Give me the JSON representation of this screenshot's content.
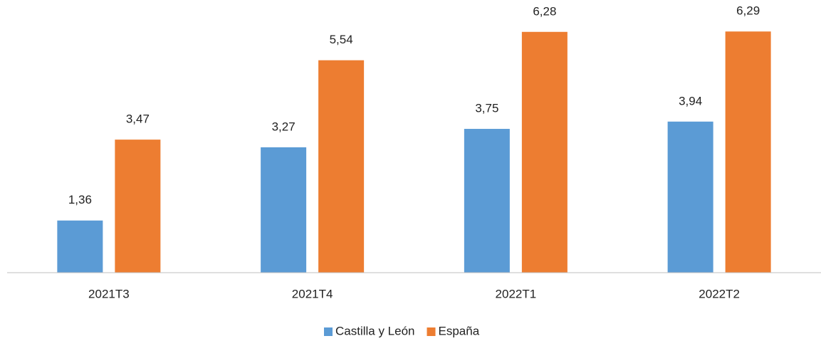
{
  "chart_data": {
    "type": "bar",
    "categories": [
      "2021T3",
      "2021T4",
      "2022T1",
      "2022T2"
    ],
    "series": [
      {
        "name": "Castilla y León",
        "color": "#5b9bd5",
        "values": [
          1.36,
          3.27,
          3.75,
          3.94
        ],
        "value_labels": [
          "1,36",
          "3,27",
          "3,75",
          "3,94"
        ]
      },
      {
        "name": "España",
        "color": "#ed7d31",
        "values": [
          3.47,
          5.54,
          6.28,
          6.29
        ],
        "value_labels": [
          "3,47",
          "5,54",
          "6,28",
          "6,29"
        ]
      }
    ],
    "ylim": [
      0,
      7
    ],
    "legend": "bottom"
  }
}
